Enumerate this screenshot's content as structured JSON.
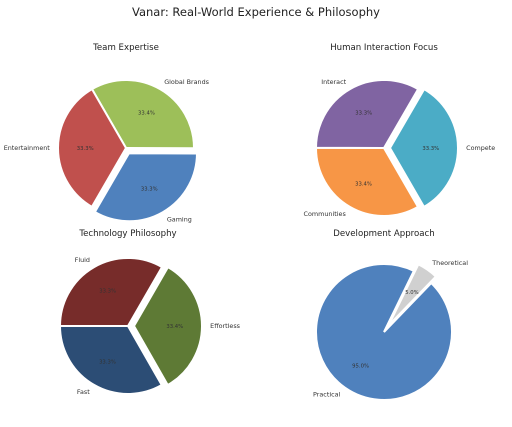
{
  "figure": {
    "title": "Vanar: Real-World Experience & Philosophy"
  },
  "chart_data": [
    {
      "type": "pie",
      "title": "Team Expertise",
      "slices": [
        {
          "label": "Global Brands",
          "value": 33.4,
          "pct_label": "33.4%",
          "color": "#9dbf59"
        },
        {
          "label": "Gaming",
          "value": 33.3,
          "pct_label": "33.3%",
          "color": "#4f81bd"
        },
        {
          "label": "Entertainment",
          "value": 33.3,
          "pct_label": "33.3%",
          "color": "#c0504d"
        }
      ],
      "exploded": "Gaming"
    },
    {
      "type": "pie",
      "title": "Human Interaction Focus",
      "slices": [
        {
          "label": "Communities",
          "value": 33.4,
          "pct_label": "33.4%",
          "color": "#f79646"
        },
        {
          "label": "Interact",
          "value": 33.3,
          "pct_label": "33.3%",
          "color": "#8064a2"
        },
        {
          "label": "Compete",
          "value": 33.3,
          "pct_label": "33.3%",
          "color": "#4bacc6"
        }
      ],
      "exploded": "Compete"
    },
    {
      "type": "pie",
      "title": "Technology Philosophy",
      "slices": [
        {
          "label": "Effortless",
          "value": 33.4,
          "pct_label": "33.4%",
          "color": "#5e7a35"
        },
        {
          "label": "Fast",
          "value": 33.3,
          "pct_label": "33.3%",
          "color": "#2c4d75"
        },
        {
          "label": "Fluid",
          "value": 33.3,
          "pct_label": "33.3%",
          "color": "#772c2a"
        }
      ],
      "exploded": "Effortless"
    },
    {
      "type": "pie",
      "title": "Development Approach",
      "slices": [
        {
          "label": "Theoretical",
          "value": 5.0,
          "pct_label": "5.0%",
          "color": "#d0d0d0"
        },
        {
          "label": "Practical",
          "value": 95.0,
          "pct_label": "95.0%",
          "color": "#4f81bd"
        }
      ],
      "exploded": "Theoretical"
    }
  ]
}
